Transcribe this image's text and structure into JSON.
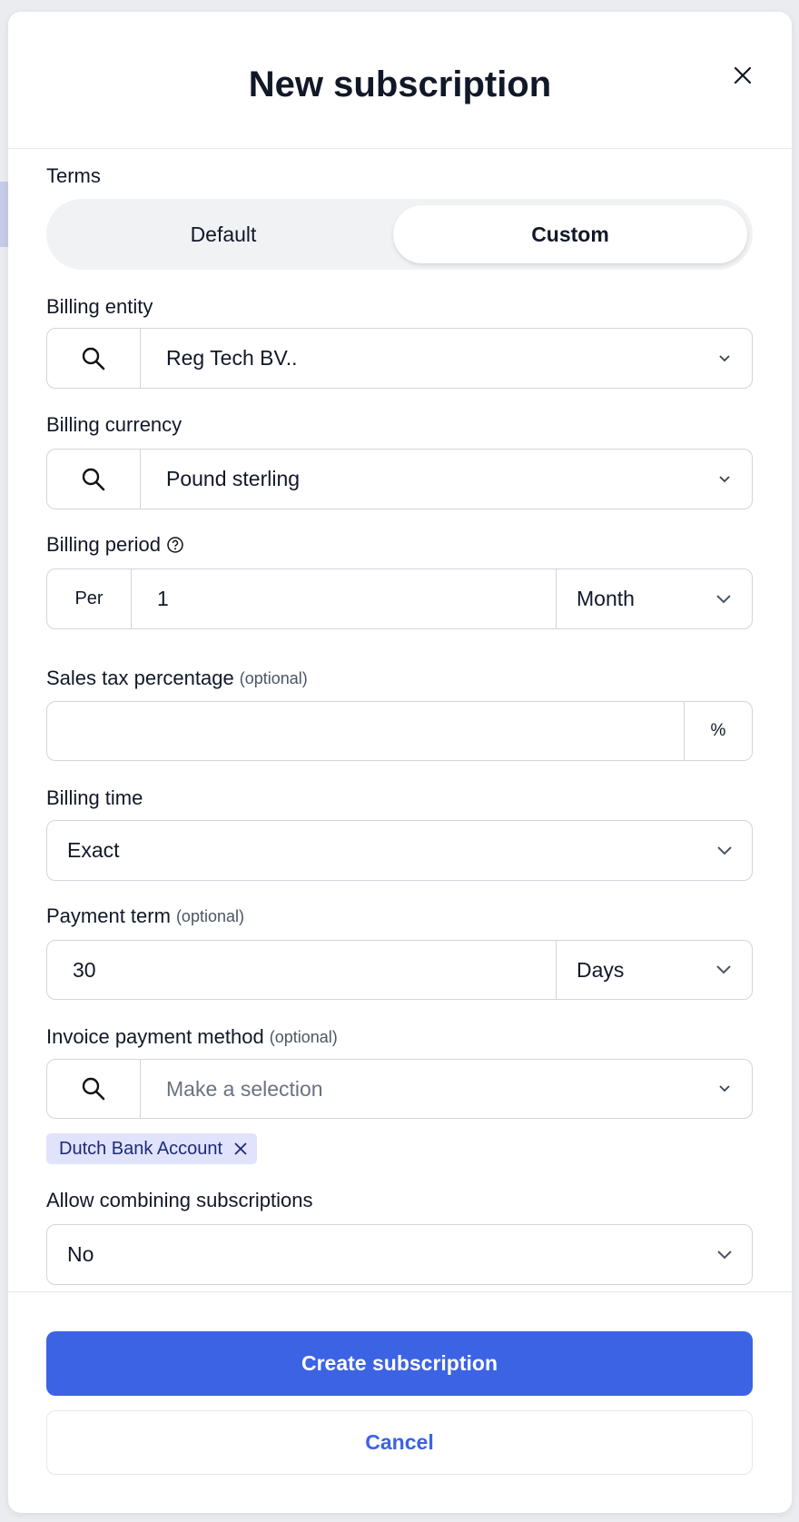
{
  "header": {
    "title": "New subscription"
  },
  "terms": {
    "label": "Terms",
    "options": [
      "Default",
      "Custom"
    ],
    "selected": "Custom"
  },
  "billing_entity": {
    "label": "Billing entity",
    "value": "Reg Tech BV.."
  },
  "billing_currency": {
    "label": "Billing currency",
    "value": "Pound sterling"
  },
  "billing_period": {
    "label": "Billing period",
    "prefix": "Per",
    "value": "1",
    "unit": "Month"
  },
  "sales_tax": {
    "label": "Sales tax percentage",
    "optional": "(optional)",
    "value": "",
    "suffix": "%"
  },
  "billing_time": {
    "label": "Billing time",
    "value": "Exact"
  },
  "payment_term": {
    "label": "Payment term",
    "optional": "(optional)",
    "value": "30",
    "unit": "Days"
  },
  "invoice_payment_method": {
    "label": "Invoice payment method",
    "optional": "(optional)",
    "placeholder": "Make a selection",
    "tags": [
      "Dutch Bank Account"
    ]
  },
  "allow_combining": {
    "label": "Allow combining subscriptions",
    "value": "No"
  },
  "footer": {
    "create_label": "Create subscription",
    "cancel_label": "Cancel"
  },
  "colors": {
    "primary": "#3b63e3",
    "tag_bg": "#e0e3fb"
  }
}
